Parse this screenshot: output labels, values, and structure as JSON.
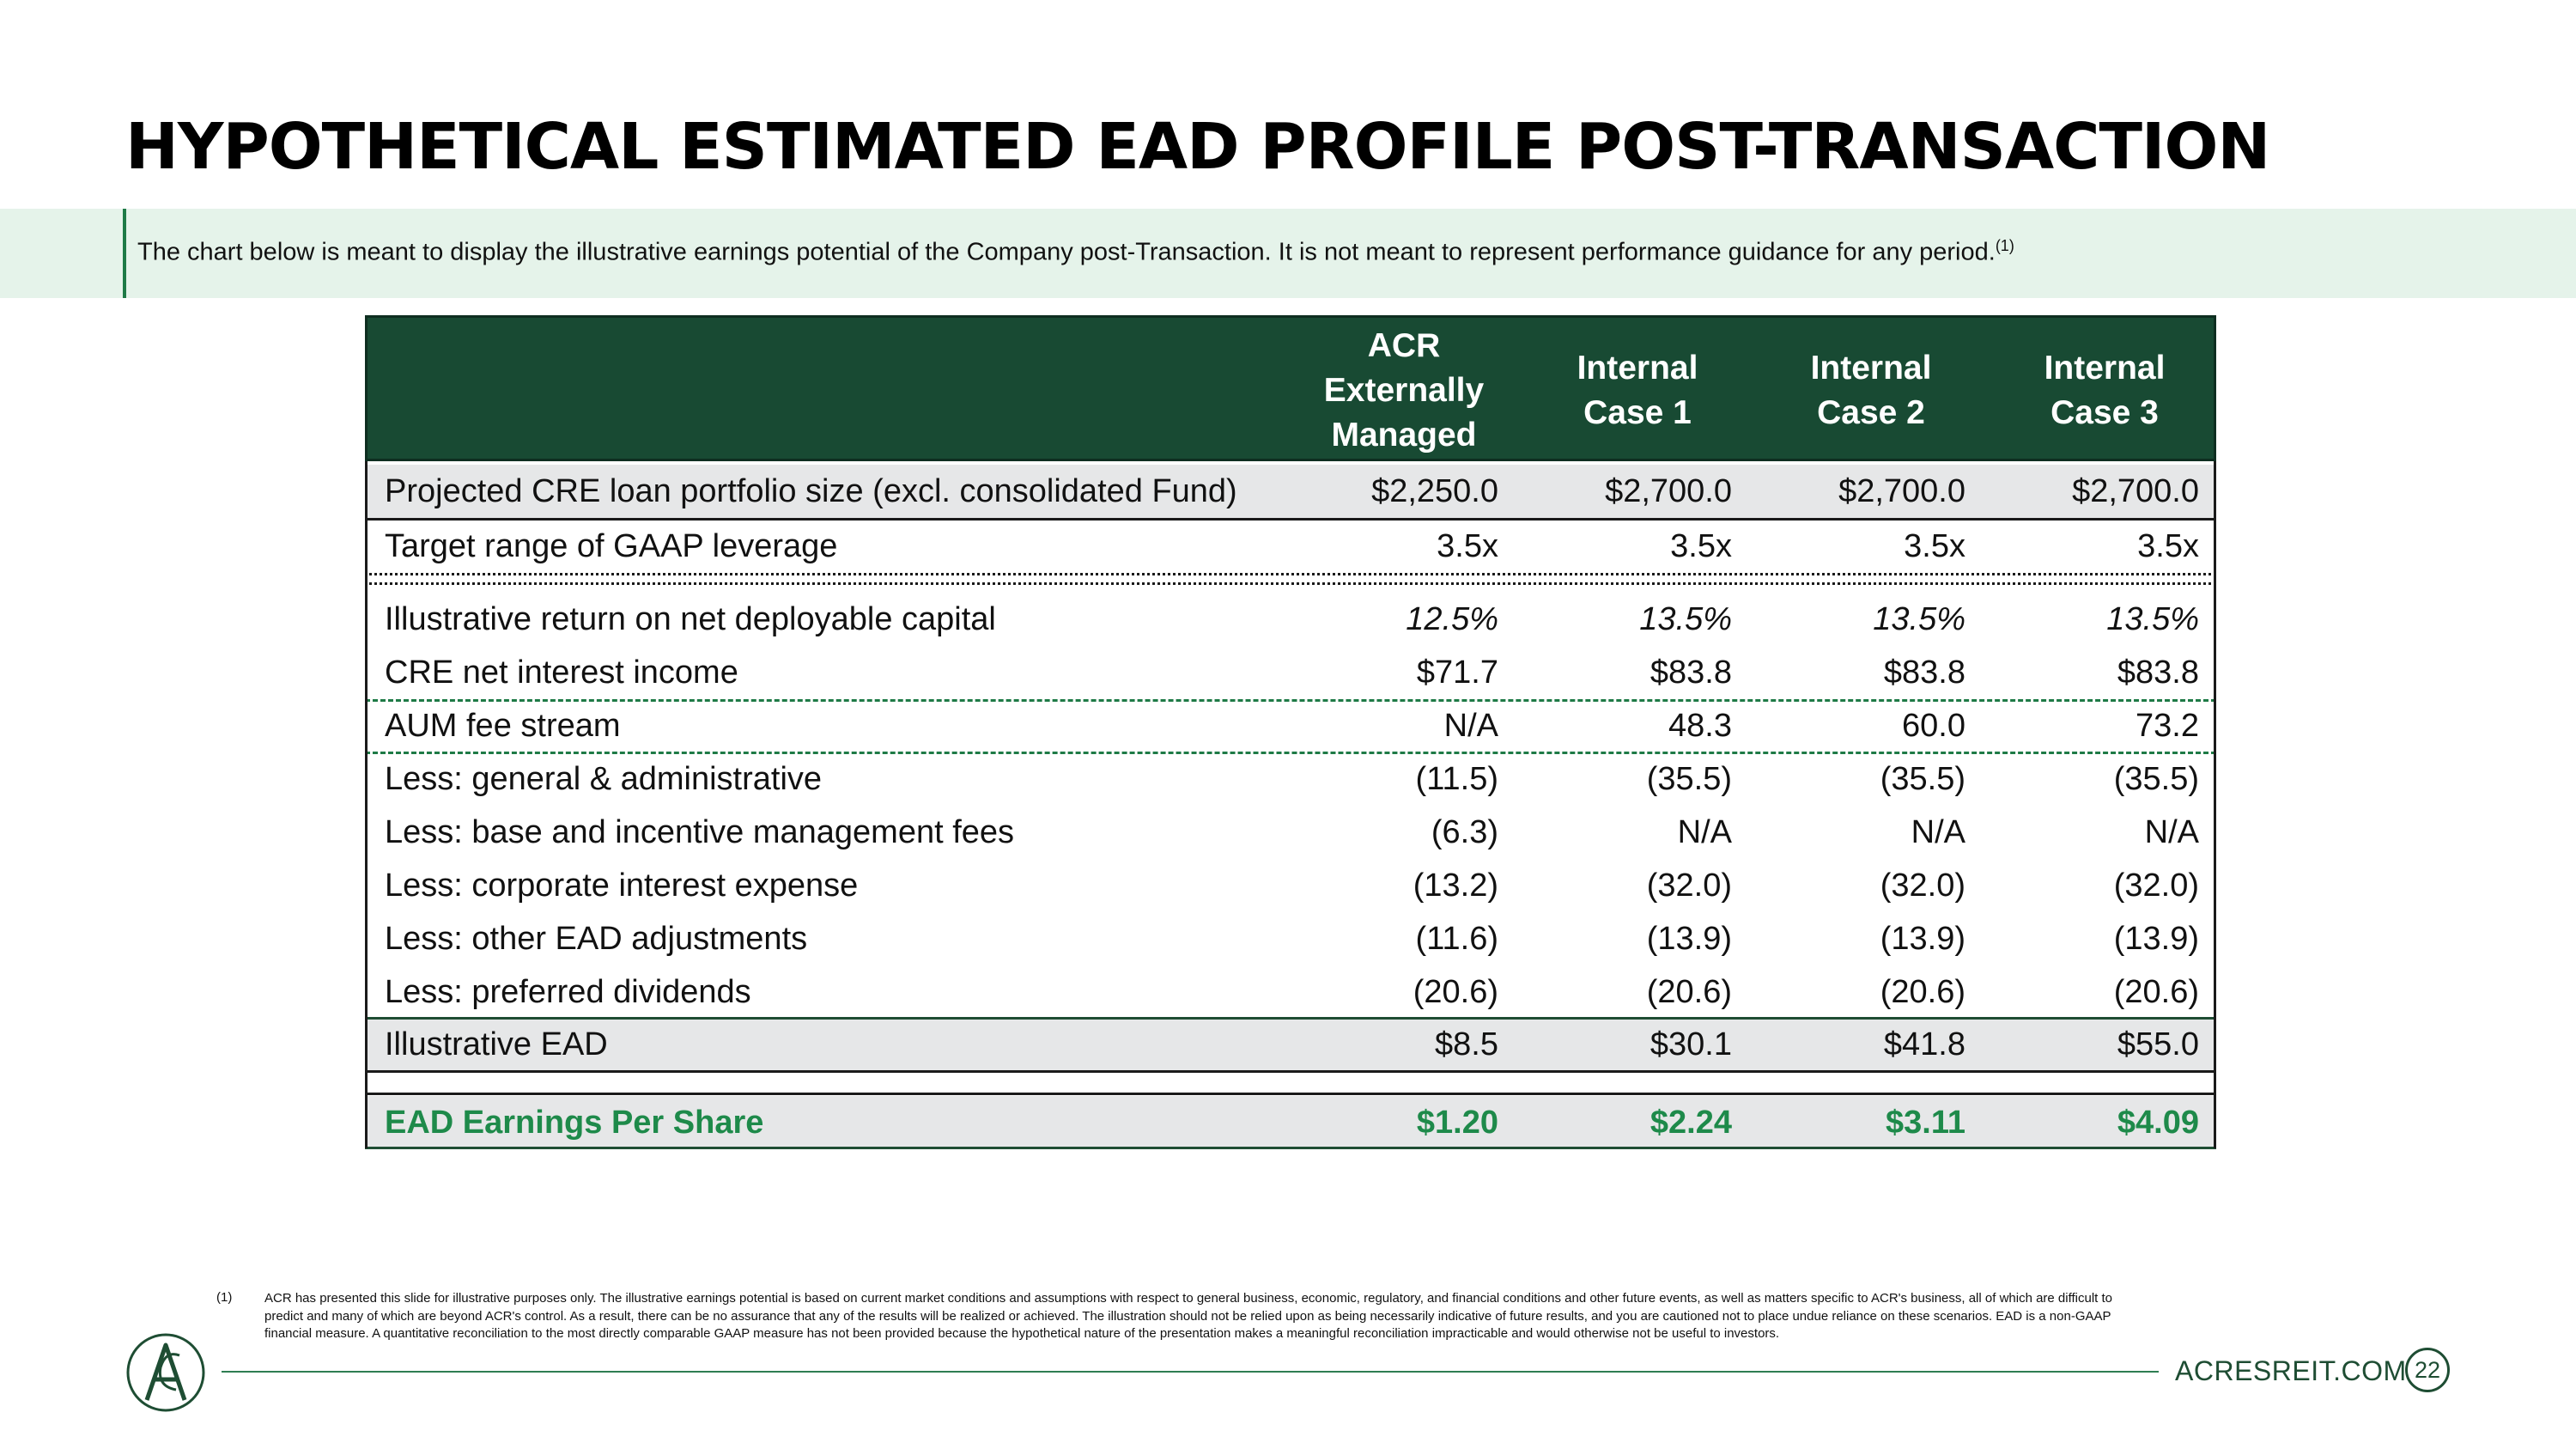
{
  "title": "HYPOTHETICAL ESTIMATED EAD PROFILE POST-TRANSACTION",
  "banner": {
    "text": "The chart below is meant to display the illustrative earnings potential of the Company post-Transaction.  It is not meant to represent performance guidance for any period.",
    "footnote_ref": "(1)"
  },
  "table": {
    "headers": [
      "ACR\nExternally\nManaged",
      "Internal\nCase 1",
      "Internal\nCase 2",
      "Internal\nCase 3"
    ],
    "rows": [
      {
        "label": "Projected CRE loan portfolio size (excl. consolidated Fund)",
        "values": [
          "$2,250.0",
          "$2,700.0",
          "$2,700.0",
          "$2,700.0"
        ]
      },
      {
        "label": "Target range of GAAP leverage",
        "values": [
          "3.5x",
          "3.5x",
          "3.5x",
          "3.5x"
        ]
      },
      {
        "label": "Illustrative return on net deployable capital",
        "values": [
          "12.5%",
          "13.5%",
          "13.5%",
          "13.5%"
        ]
      },
      {
        "label": "CRE net interest income",
        "values": [
          "$71.7",
          "$83.8",
          "$83.8",
          "$83.8"
        ]
      },
      {
        "label": "AUM fee stream",
        "values": [
          "N/A",
          "48.3",
          "60.0",
          "73.2"
        ]
      },
      {
        "label": "Less: general & administrative",
        "values": [
          "(11.5)",
          "(35.5)",
          "(35.5)",
          "(35.5)"
        ]
      },
      {
        "label": "Less: base and incentive management fees",
        "values": [
          "(6.3)",
          "N/A",
          "N/A",
          "N/A"
        ]
      },
      {
        "label": "Less: corporate interest expense",
        "values": [
          "(13.2)",
          "(32.0)",
          "(32.0)",
          "(32.0)"
        ]
      },
      {
        "label": "Less: other EAD adjustments",
        "values": [
          "(11.6)",
          "(13.9)",
          "(13.9)",
          "(13.9)"
        ]
      },
      {
        "label": "Less: preferred dividends",
        "values": [
          "(20.6)",
          "(20.6)",
          "(20.6)",
          "(20.6)"
        ]
      },
      {
        "label": "Illustrative EAD",
        "values": [
          "$8.5",
          "$30.1",
          "$41.8",
          "$55.0"
        ]
      },
      {
        "label": "EAD Earnings Per Share",
        "values": [
          "$1.20",
          "$2.24",
          "$3.11",
          "$4.09"
        ]
      }
    ]
  },
  "footnote": {
    "number": "(1)",
    "text": "ACR has presented this slide for illustrative purposes only. The illustrative earnings potential is based on current market conditions and assumptions with respect to general business, economic, regulatory, and financial conditions and other future events, as well as matters specific to ACR's business, all of which are difficult to predict and many of which are beyond ACR's control. As a result, there can be no assurance that any of the results will be realized or achieved. The illustration should not be relied upon as being necessarily indicative of future results, and you are cautioned not to place undue reliance on these scenarios. EAD is a non-GAAP financial measure. A quantitative reconciliation to the most directly comparable GAAP measure has not been provided because the hypothetical nature of the presentation makes a meaningful reconciliation impracticable and would otherwise not be useful to investors."
  },
  "footer": {
    "website": "ACRESREIT.COM",
    "page_number": "22",
    "logo_icon": "acres-logo-icon"
  },
  "colors": {
    "header_bg": "#184a33",
    "banner_bg": "#e5f3ea",
    "accent_green": "#1e8a4a",
    "row_shade": "#e6e7e8"
  }
}
